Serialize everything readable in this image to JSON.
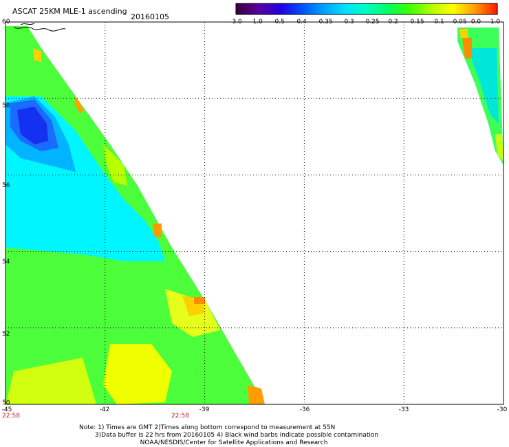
{
  "header": {
    "title": "ASCAT 25KM MLE-1 ascending",
    "date": "20160105"
  },
  "colorbar": {
    "ticks": [
      "-3.0",
      "-1.0",
      "-0.5",
      "-0.4",
      "-0.35",
      "-0.3",
      "-0.25",
      "-0.2",
      "-0.15",
      "-0.1",
      "-0.05",
      "0.0",
      "1.0"
    ],
    "colors": [
      "#3a0040",
      "#5a00a0",
      "#2000e0",
      "#0050ff",
      "#00a0ff",
      "#00e0ff",
      "#00ffc0",
      "#00ff60",
      "#40ff00",
      "#b0ff00",
      "#ffff00",
      "#ffa000",
      "#ff2000"
    ]
  },
  "map": {
    "lat_labels": [
      "60",
      "58",
      "56",
      "54",
      "52",
      "50"
    ],
    "lon_labels": [
      "-45",
      "-42",
      "-39",
      "-36",
      "-33",
      "-30"
    ],
    "time_labels": [
      "22:58",
      "22:58"
    ],
    "lat_range": [
      50,
      60
    ],
    "lon_range": [
      -45,
      -30
    ]
  },
  "footer": {
    "note": "Note: 1) Times are GMT 2)Times along bottom correspond to measurement at 55N\n        3)Data buffer is 22 hrs from 20160105 4) Black wind barbs indicate possible contamination\n                               NOAA/NESDIS/Center for Satellite Applications and Research"
  }
}
